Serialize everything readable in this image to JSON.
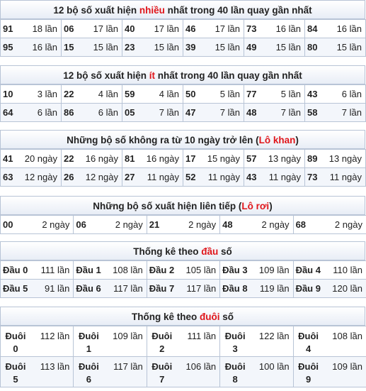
{
  "sec1": {
    "title_a": "12 bộ số xuất hiện ",
    "title_hl": "nhiều",
    "title_b": " nhất trong 40 lần quay gần nhất",
    "rows": [
      [
        [
          "91",
          "18 lần"
        ],
        [
          "06",
          "17 lần"
        ],
        [
          "40",
          "17 lần"
        ],
        [
          "46",
          "17 lần"
        ],
        [
          "73",
          "16 lần"
        ],
        [
          "84",
          "16 lần"
        ]
      ],
      [
        [
          "95",
          "16 lần"
        ],
        [
          "15",
          "15 lần"
        ],
        [
          "23",
          "15 lần"
        ],
        [
          "39",
          "15 lần"
        ],
        [
          "49",
          "15 lần"
        ],
        [
          "80",
          "15 lần"
        ]
      ]
    ]
  },
  "sec2": {
    "title_a": "12 bộ số xuất hiện ",
    "title_hl": "ít",
    "title_b": " nhất trong 40 lần quay gần nhất",
    "rows": [
      [
        [
          "10",
          "3 lần"
        ],
        [
          "22",
          "4 lần"
        ],
        [
          "59",
          "4 lần"
        ],
        [
          "50",
          "5 lần"
        ],
        [
          "77",
          "5 lần"
        ],
        [
          "43",
          "6 lần"
        ]
      ],
      [
        [
          "64",
          "6 lần"
        ],
        [
          "86",
          "6 lần"
        ],
        [
          "05",
          "7 lần"
        ],
        [
          "47",
          "7 lần"
        ],
        [
          "48",
          "7 lần"
        ],
        [
          "58",
          "7 lần"
        ]
      ]
    ]
  },
  "sec3": {
    "title_a": "Những bộ số không ra từ 10 ngày trở lên (",
    "title_hl": "Lô khan",
    "title_b": ")",
    "rows": [
      [
        [
          "41",
          "20 ngày"
        ],
        [
          "22",
          "16 ngày"
        ],
        [
          "81",
          "16 ngày"
        ],
        [
          "17",
          "15 ngày"
        ],
        [
          "57",
          "13 ngày"
        ],
        [
          "89",
          "13 ngày"
        ]
      ],
      [
        [
          "63",
          "12 ngày"
        ],
        [
          "26",
          "12 ngày"
        ],
        [
          "27",
          "11 ngày"
        ],
        [
          "52",
          "11 ngày"
        ],
        [
          "43",
          "11 ngày"
        ],
        [
          "73",
          "11 ngày"
        ]
      ]
    ]
  },
  "sec4": {
    "title_a": "Những bộ số xuất hiện liên tiếp (",
    "title_hl": "Lô rơi",
    "title_b": ")",
    "rows": [
      [
        [
          "00",
          "2 ngày"
        ],
        [
          "06",
          "2 ngày"
        ],
        [
          "21",
          "2 ngày"
        ],
        [
          "48",
          "2 ngày"
        ],
        [
          "68",
          "2 ngày"
        ]
      ]
    ]
  },
  "sec5": {
    "title_a": "Thống kê theo ",
    "title_hl": "đầu",
    "title_b": " số",
    "rows": [
      [
        [
          "Đầu 0",
          "111 lần"
        ],
        [
          "Đầu 1",
          "108 lần"
        ],
        [
          "Đầu 2",
          "105 lần"
        ],
        [
          "Đầu 3",
          "109 lần"
        ],
        [
          "Đầu 4",
          "110 lần"
        ]
      ],
      [
        [
          "Đầu 5",
          "91 lần"
        ],
        [
          "Đầu 6",
          "117 lần"
        ],
        [
          "Đầu 7",
          "117 lần"
        ],
        [
          "Đầu 8",
          "119 lần"
        ],
        [
          "Đầu 9",
          "120 lần"
        ]
      ]
    ]
  },
  "sec6": {
    "title_a": "Thống kê theo ",
    "title_hl": "đuôi",
    "title_b": " số",
    "rows": [
      [
        [
          "Đuôi 0",
          "112 lần"
        ],
        [
          "Đuôi 1",
          "109 lần"
        ],
        [
          "Đuôi 2",
          "111 lần"
        ],
        [
          "Đuôi 3",
          "122 lần"
        ],
        [
          "Đuôi 4",
          "108 lần"
        ]
      ],
      [
        [
          "Đuôi 5",
          "113 lần"
        ],
        [
          "Đuôi 6",
          "117 lần"
        ],
        [
          "Đuôi 7",
          "106 lần"
        ],
        [
          "Đuôi 8",
          "100 lần"
        ],
        [
          "Đuôi 9",
          "109 lần"
        ]
      ]
    ]
  }
}
